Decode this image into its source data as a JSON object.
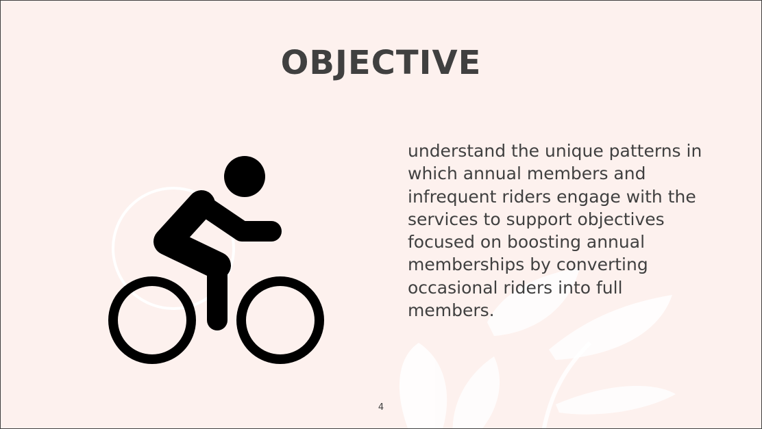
{
  "slide": {
    "title": "OBJECTIVE",
    "body": "understand the unique patterns in which annual members and infrequent riders engage with the services to support objectives focused on boosting annual memberships by converting occasional riders into full members.",
    "page_number": "4",
    "icon": "cyclist-icon",
    "colors": {
      "background": "#fdf1ee",
      "text": "#404040",
      "icon": "#000000",
      "decor": "#ffffff"
    }
  }
}
